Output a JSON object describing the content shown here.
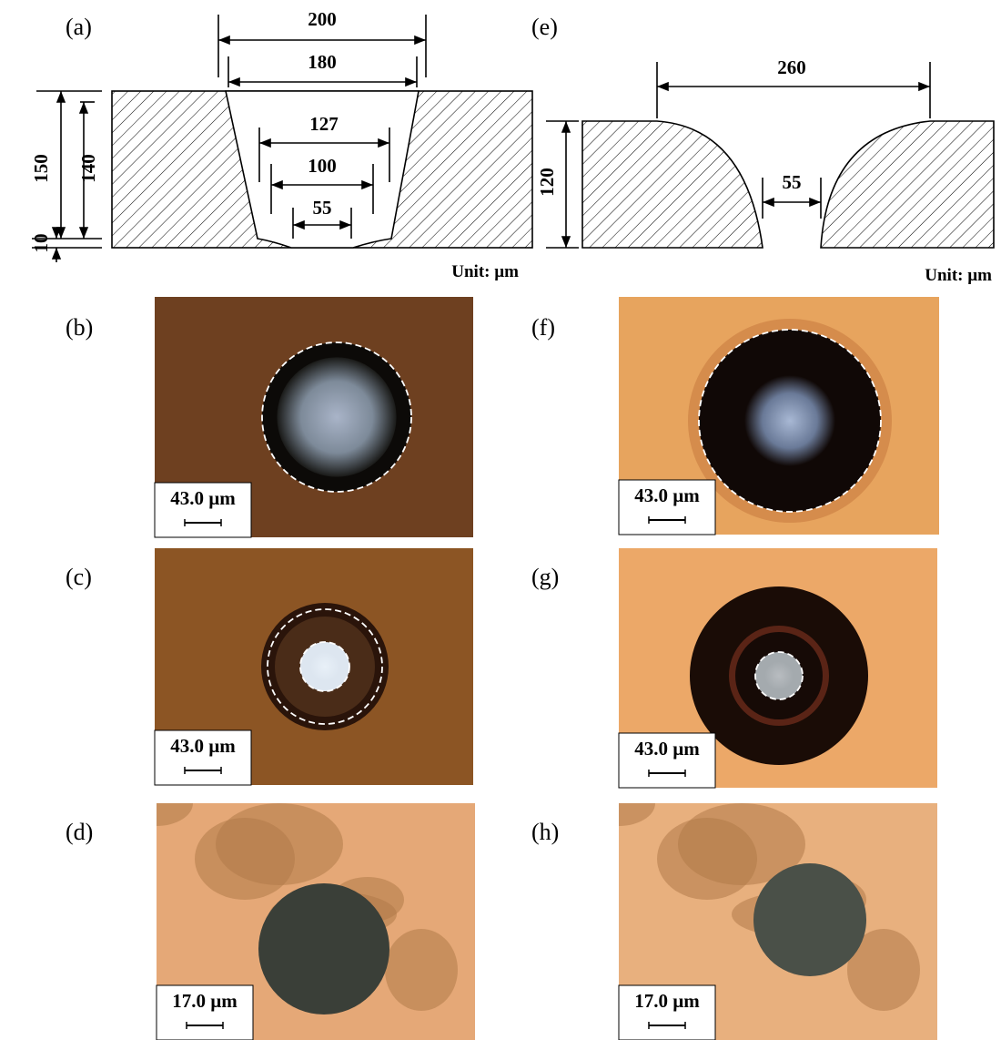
{
  "panels": {
    "a": {
      "label": "(a)",
      "dimensions": [
        200,
        180,
        127,
        100,
        55,
        150,
        140,
        10
      ],
      "unit": "Unit: µm"
    },
    "e": {
      "label": "(e)",
      "dimensions": [
        260,
        55,
        120
      ],
      "unit": "Unit: µm"
    },
    "micrographs": [
      {
        "label": "(b)",
        "scale_bar": "43.0 µm"
      },
      {
        "label": "(c)",
        "scale_bar": "43.0 µm"
      },
      {
        "label": "(d)",
        "scale_bar": "17.0 µm"
      },
      {
        "label": "(f)",
        "scale_bar": "43.0 µm"
      },
      {
        "label": "(g)",
        "scale_bar": "43.0 µm"
      },
      {
        "label": "(h)",
        "scale_bar": "17.0 µm"
      }
    ]
  }
}
